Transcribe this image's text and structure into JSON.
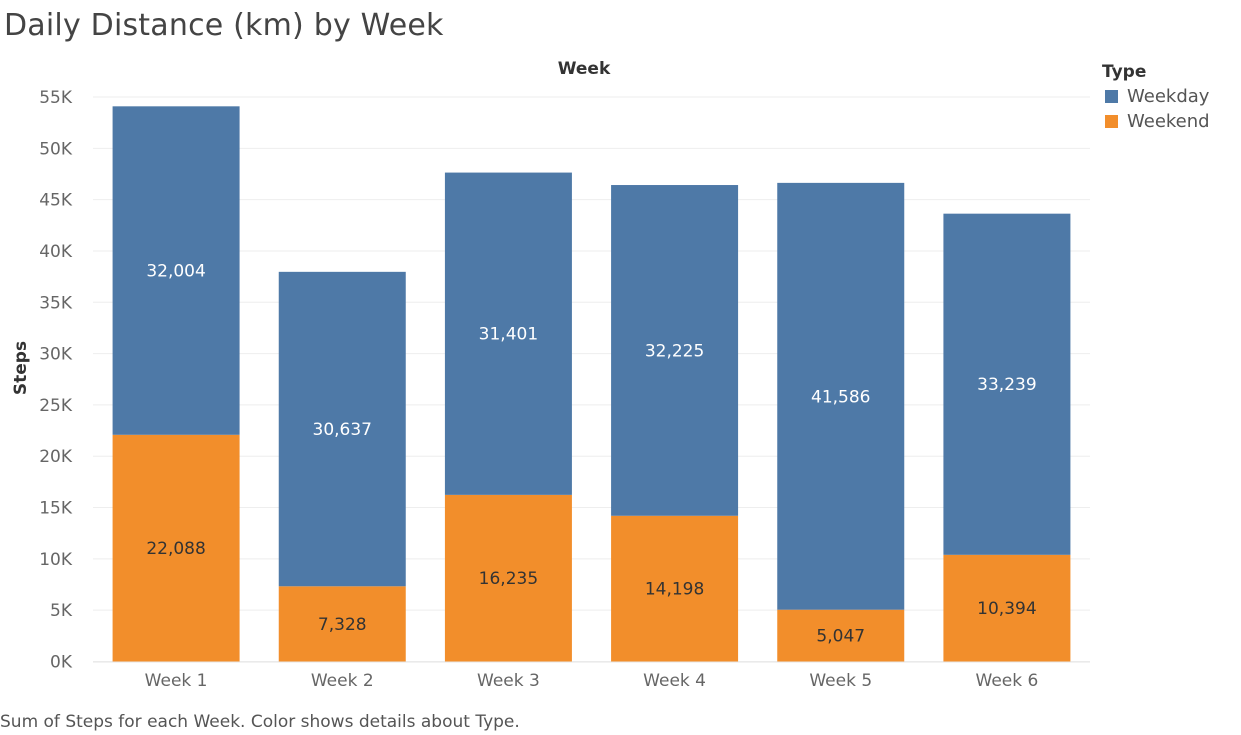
{
  "title": "Daily Distance (km) by Week",
  "caption": "Sum of Steps for each Week.  Color shows details about Type.",
  "legend": {
    "title": "Type",
    "items": [
      {
        "label": "Weekday",
        "color": "#4e79a7"
      },
      {
        "label": "Weekend",
        "color": "#f28e2b"
      }
    ]
  },
  "chart_data": {
    "type": "bar",
    "stacked": true,
    "title": "Daily Distance (km) by Week",
    "xlabel": "Week",
    "ylabel": "Steps",
    "categories": [
      "Week 1",
      "Week 2",
      "Week 3",
      "Week 4",
      "Week 5",
      "Week 6"
    ],
    "series": [
      {
        "name": "Weekend",
        "color": "#f28e2b",
        "label_color": "#333333",
        "values": [
          22088,
          7328,
          16235,
          14198,
          5047,
          10394
        ]
      },
      {
        "name": "Weekday",
        "color": "#4e79a7",
        "label_color": "#ffffff",
        "values": [
          32004,
          30637,
          31401,
          32225,
          41586,
          33239
        ]
      }
    ],
    "ylim": [
      0,
      55000
    ],
    "yticks": [
      0,
      5000,
      10000,
      15000,
      20000,
      25000,
      30000,
      35000,
      40000,
      45000,
      50000,
      55000
    ],
    "ytick_labels": [
      "0K",
      "5K",
      "10K",
      "15K",
      "20K",
      "25K",
      "30K",
      "35K",
      "40K",
      "45K",
      "50K",
      "55K"
    ],
    "data_labels": {
      "Weekend": [
        "22,088",
        "7,328",
        "16,235",
        "14,198",
        "5,047",
        "10,394"
      ],
      "Weekday": [
        "32,004",
        "30,637",
        "31,401",
        "32,225",
        "41,586",
        "33,239"
      ]
    },
    "grid": true,
    "legend_position": "top-right"
  }
}
